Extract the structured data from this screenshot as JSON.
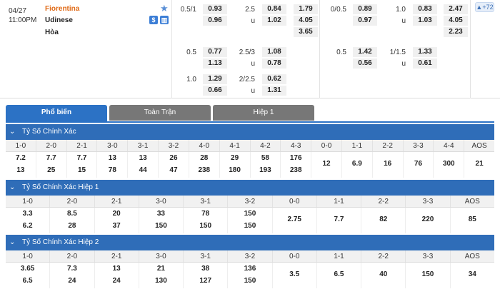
{
  "match": {
    "date": "04/27",
    "time": "11:00PM",
    "home": "Fiorentina",
    "away": "Udinese",
    "draw": "Hòa",
    "more_count": "+72",
    "handicap_ft": [
      {
        "line": "0.5/1",
        "home": "0.93",
        "away": "0.96"
      },
      {
        "line": "0.5",
        "home": "0.77",
        "away": "1.13"
      },
      {
        "line": "1.0",
        "home": "1.29",
        "away": "0.66"
      }
    ],
    "ou_ft": [
      {
        "line": "2.5",
        "over": "0.84",
        "under_lbl": "u",
        "under": "1.02"
      },
      {
        "line": "2.5/3",
        "over": "1.08",
        "under_lbl": "u",
        "under": "0.78"
      },
      {
        "line": "2/2.5",
        "over": "0.62",
        "under_lbl": "u",
        "under": "1.31"
      }
    ],
    "x12_ft": [
      "1.79",
      "4.05",
      "3.65"
    ],
    "handicap_h1": [
      {
        "line": "0/0.5",
        "home": "0.89",
        "away": "0.97"
      },
      {
        "line": "0.5",
        "home": "1.42",
        "away": "0.56"
      }
    ],
    "ou_h1": [
      {
        "line": "1.0",
        "over": "0.83",
        "under_lbl": "u",
        "under": "1.03"
      },
      {
        "line": "1/1.5",
        "over": "1.33",
        "under_lbl": "u",
        "under": "0.61"
      }
    ],
    "x12_h1": [
      "2.47",
      "4.05",
      "2.23"
    ]
  },
  "tabs": [
    {
      "label": "Phổ biến",
      "active": true
    },
    {
      "label": "Toàn Trận",
      "active": false
    },
    {
      "label": "Hiệp 1",
      "active": false
    }
  ],
  "sections": [
    {
      "title": "Tỷ Số Chính Xác",
      "headers": [
        "1-0",
        "2-0",
        "2-1",
        "3-0",
        "3-1",
        "3-2",
        "4-0",
        "4-1",
        "4-2",
        "4-3",
        "0-0",
        "1-1",
        "2-2",
        "3-3",
        "4-4",
        "AOS"
      ],
      "cells": [
        [
          "7.2",
          "13"
        ],
        [
          "7.7",
          "25"
        ],
        [
          "7.7",
          "15"
        ],
        [
          "13",
          "78"
        ],
        [
          "13",
          "44"
        ],
        [
          "26",
          "47"
        ],
        [
          "28",
          "238"
        ],
        [
          "29",
          "180"
        ],
        [
          "58",
          "193"
        ],
        [
          "176",
          "238"
        ],
        [
          "12"
        ],
        [
          "6.9"
        ],
        [
          "16"
        ],
        [
          "76"
        ],
        [
          "300"
        ],
        [
          "21"
        ]
      ]
    },
    {
      "title": "Tỷ Số Chính Xác Hiệp 1",
      "headers": [
        "1-0",
        "2-0",
        "2-1",
        "3-0",
        "3-1",
        "3-2",
        "0-0",
        "1-1",
        "2-2",
        "3-3",
        "AOS"
      ],
      "cells": [
        [
          "3.3",
          "6.2"
        ],
        [
          "8.5",
          "28"
        ],
        [
          "20",
          "37"
        ],
        [
          "33",
          "150"
        ],
        [
          "78",
          "150"
        ],
        [
          "150",
          "150"
        ],
        [
          "2.75"
        ],
        [
          "7.7"
        ],
        [
          "82"
        ],
        [
          "220"
        ],
        [
          "85"
        ]
      ]
    },
    {
      "title": "Tỷ Số Chính Xác Hiệp 2",
      "headers": [
        "1-0",
        "2-0",
        "2-1",
        "3-0",
        "3-1",
        "3-2",
        "0-0",
        "1-1",
        "2-2",
        "3-3",
        "AOS"
      ],
      "cells": [
        [
          "3.65",
          "6.5"
        ],
        [
          "7.3",
          "24"
        ],
        [
          "13",
          "24"
        ],
        [
          "21",
          "130"
        ],
        [
          "38",
          "127"
        ],
        [
          "136",
          "150"
        ],
        [
          "3.5"
        ],
        [
          "6.5"
        ],
        [
          "40"
        ],
        [
          "150"
        ],
        [
          "34"
        ]
      ]
    }
  ]
}
